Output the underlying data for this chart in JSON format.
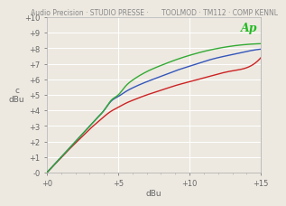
{
  "title": "Audio Precision · STUDIO PRESSE ·      TOOLMOD · TM112 · COMP KENNL",
  "xlabel": "dBu",
  "ylabel": "c\ndBu",
  "xlim": [
    0,
    15
  ],
  "ylim": [
    0,
    10
  ],
  "xticks": [
    0,
    5,
    10,
    15
  ],
  "yticks": [
    0,
    1,
    2,
    3,
    4,
    5,
    6,
    7,
    8,
    9,
    10
  ],
  "xtick_labels": [
    "+0",
    "+5",
    "+10",
    "+15"
  ],
  "ytick_labels": [
    "-0",
    "+1",
    "+2",
    "+3",
    "+4",
    "+5",
    "+6",
    "+7",
    "+8",
    "+9",
    "+10"
  ],
  "background_color": "#ede9e1",
  "grid_color": "#ffffff",
  "line_colors": [
    "#cc2222",
    "#3355bb",
    "#33aa33"
  ],
  "ap_color": "#22bb22",
  "ap_text": "Ap",
  "title_fontsize": 5.5,
  "axis_fontsize": 6.5,
  "tick_fontsize": 6.0,
  "title_color": "#888888",
  "spine_color": "#aaaaaa",
  "tick_color": "#666666",
  "blue_x": [
    0,
    0.5,
    1.0,
    1.5,
    2.0,
    2.5,
    3.0,
    3.5,
    4.0,
    4.5,
    5.0,
    5.5,
    6.0,
    7.0,
    8.0,
    9.0,
    10.0,
    11.0,
    12.0,
    13.0,
    14.0,
    15.0
  ],
  "blue_y": [
    0,
    0.5,
    1.0,
    1.5,
    2.0,
    2.5,
    3.0,
    3.5,
    4.0,
    4.6,
    4.9,
    5.2,
    5.45,
    5.85,
    6.2,
    6.55,
    6.85,
    7.15,
    7.4,
    7.6,
    7.8,
    7.95
  ],
  "red_x": [
    0,
    0.5,
    1.0,
    1.5,
    2.0,
    2.5,
    3.0,
    3.5,
    4.0,
    4.5,
    5.0,
    5.5,
    6.0,
    7.0,
    8.0,
    9.0,
    10.0,
    11.0,
    12.0,
    13.0,
    14.0,
    15.0
  ],
  "red_y": [
    0,
    0.48,
    0.96,
    1.44,
    1.9,
    2.35,
    2.8,
    3.2,
    3.6,
    3.95,
    4.2,
    4.45,
    4.65,
    5.0,
    5.3,
    5.6,
    5.85,
    6.1,
    6.35,
    6.55,
    6.75,
    7.4
  ],
  "green_x": [
    0,
    0.5,
    1.0,
    1.5,
    2.0,
    2.5,
    3.0,
    3.5,
    4.0,
    4.5,
    5.0,
    5.5,
    6.0,
    7.0,
    8.0,
    9.0,
    10.0,
    11.0,
    12.0,
    13.0,
    14.0,
    15.0
  ],
  "green_y": [
    0,
    0.5,
    1.0,
    1.5,
    2.0,
    2.5,
    3.0,
    3.5,
    4.0,
    4.65,
    5.0,
    5.55,
    5.95,
    6.5,
    6.9,
    7.25,
    7.55,
    7.8,
    8.0,
    8.15,
    8.25,
    8.3
  ]
}
